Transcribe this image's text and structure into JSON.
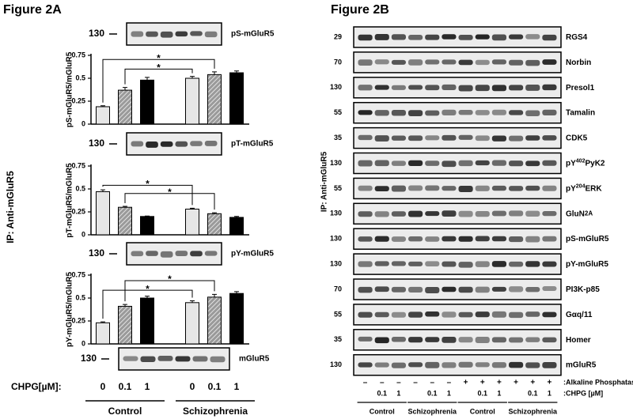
{
  "figure_a": {
    "title": "Figure 2A",
    "side_label": "IP: Anti-mGluR5",
    "blots": [
      {
        "mw": "130",
        "label": "pS-mGluR5"
      },
      {
        "mw": "130",
        "label": "pT-mGluR5"
      },
      {
        "mw": "130",
        "label": "pY-mGluR5"
      },
      {
        "mw": "130",
        "label": "mGluR5"
      }
    ],
    "x_axis": {
      "label": "CHPG[µM]:",
      "categories": [
        "0",
        "0.1",
        "1",
        "0",
        "0.1",
        "1"
      ],
      "groups": [
        "Control",
        "Schizophrenia"
      ],
      "colors": [
        "#e6e6e6",
        "#8a8a8a",
        "#000000",
        "#e6e6e6",
        "#8a8a8a",
        "#000000"
      ]
    }
  },
  "chart_data": [
    {
      "type": "bar",
      "y_label": "pS-mGluR5/mGluR5",
      "values": [
        0.19,
        0.37,
        0.48,
        0.5,
        0.54,
        0.56
      ],
      "errors": [
        0.01,
        0.03,
        0.03,
        0.02,
        0.03,
        0.02
      ],
      "ylim": [
        0,
        0.75
      ],
      "yticks": [
        0,
        0.25,
        0.5,
        0.75
      ],
      "annotations": [
        "*",
        "*"
      ]
    },
    {
      "type": "bar",
      "y_label": "pT-mGluR5/mGluR5",
      "values": [
        0.47,
        0.3,
        0.2,
        0.28,
        0.23,
        0.19
      ],
      "errors": [
        0.02,
        0.01,
        0.005,
        0.01,
        0.01,
        0.01
      ],
      "ylim": [
        0,
        0.75
      ],
      "yticks": [
        0,
        0.25,
        0.5,
        0.75
      ],
      "annotations": [
        "*",
        "*"
      ]
    },
    {
      "type": "bar",
      "y_label": "pY-mGluR5/mGluR5",
      "values": [
        0.23,
        0.41,
        0.5,
        0.45,
        0.51,
        0.55
      ],
      "errors": [
        0.01,
        0.02,
        0.02,
        0.02,
        0.03,
        0.02
      ],
      "ylim": [
        0,
        0.75
      ],
      "yticks": [
        0,
        0.25,
        0.5,
        0.75
      ],
      "annotations": [
        "*",
        "*"
      ]
    }
  ],
  "figure_b": {
    "title": "Figure 2B",
    "side_label": "IP: Anti-mGluR5",
    "blots": [
      {
        "mw": "29",
        "label": [
          {
            "text": "RGS4"
          }
        ]
      },
      {
        "mw": "70",
        "label": [
          {
            "text": "Norbin"
          }
        ]
      },
      {
        "mw": "130",
        "label": [
          {
            "text": "Presol1"
          }
        ]
      },
      {
        "mw": "55",
        "label": [
          {
            "text": "Tamalin"
          }
        ]
      },
      {
        "mw": "35",
        "label": [
          {
            "text": "CDK5"
          }
        ]
      },
      {
        "mw": "130",
        "label": [
          {
            "text": "pY"
          },
          {
            "text": "402",
            "sup": true
          },
          {
            "text": "PyK2"
          }
        ]
      },
      {
        "mw": "55",
        "label": [
          {
            "text": "pY"
          },
          {
            "text": "204",
            "sup": true
          },
          {
            "text": "ERK"
          }
        ]
      },
      {
        "mw": "130",
        "label": [
          {
            "text": "GluN"
          },
          {
            "text": "2A",
            "sub": true
          }
        ]
      },
      {
        "mw": "130",
        "label": [
          {
            "text": "pS-mGluR5"
          }
        ]
      },
      {
        "mw": "130",
        "label": [
          {
            "text": "pY-mGluR5"
          }
        ]
      },
      {
        "mw": "70",
        "label": [
          {
            "text": "PI3K-p85"
          }
        ]
      },
      {
        "mw": "55",
        "label": [
          {
            "text": "Gαq/11"
          }
        ]
      },
      {
        "mw": "35",
        "label": [
          {
            "text": "Homer"
          }
        ]
      },
      {
        "mw": "130",
        "label": [
          {
            "text": "mGluR5"
          }
        ]
      }
    ],
    "phosphatase": {
      "label": ":Alkaline Phosphatase",
      "lanes": [
        "–",
        "–",
        "–",
        "–",
        "–",
        "–",
        "+",
        "+",
        "+",
        "+",
        "+",
        "+"
      ]
    },
    "chpg": {
      "label": ":CHPG [µM]",
      "lanes": [
        null,
        "0.1",
        "1",
        null,
        "0.1",
        "1",
        null,
        "0.1",
        "1",
        null,
        "0.1",
        "1"
      ]
    },
    "groups": [
      "Control",
      "Schizophrenia",
      "Control",
      "Schizophrenia"
    ]
  }
}
